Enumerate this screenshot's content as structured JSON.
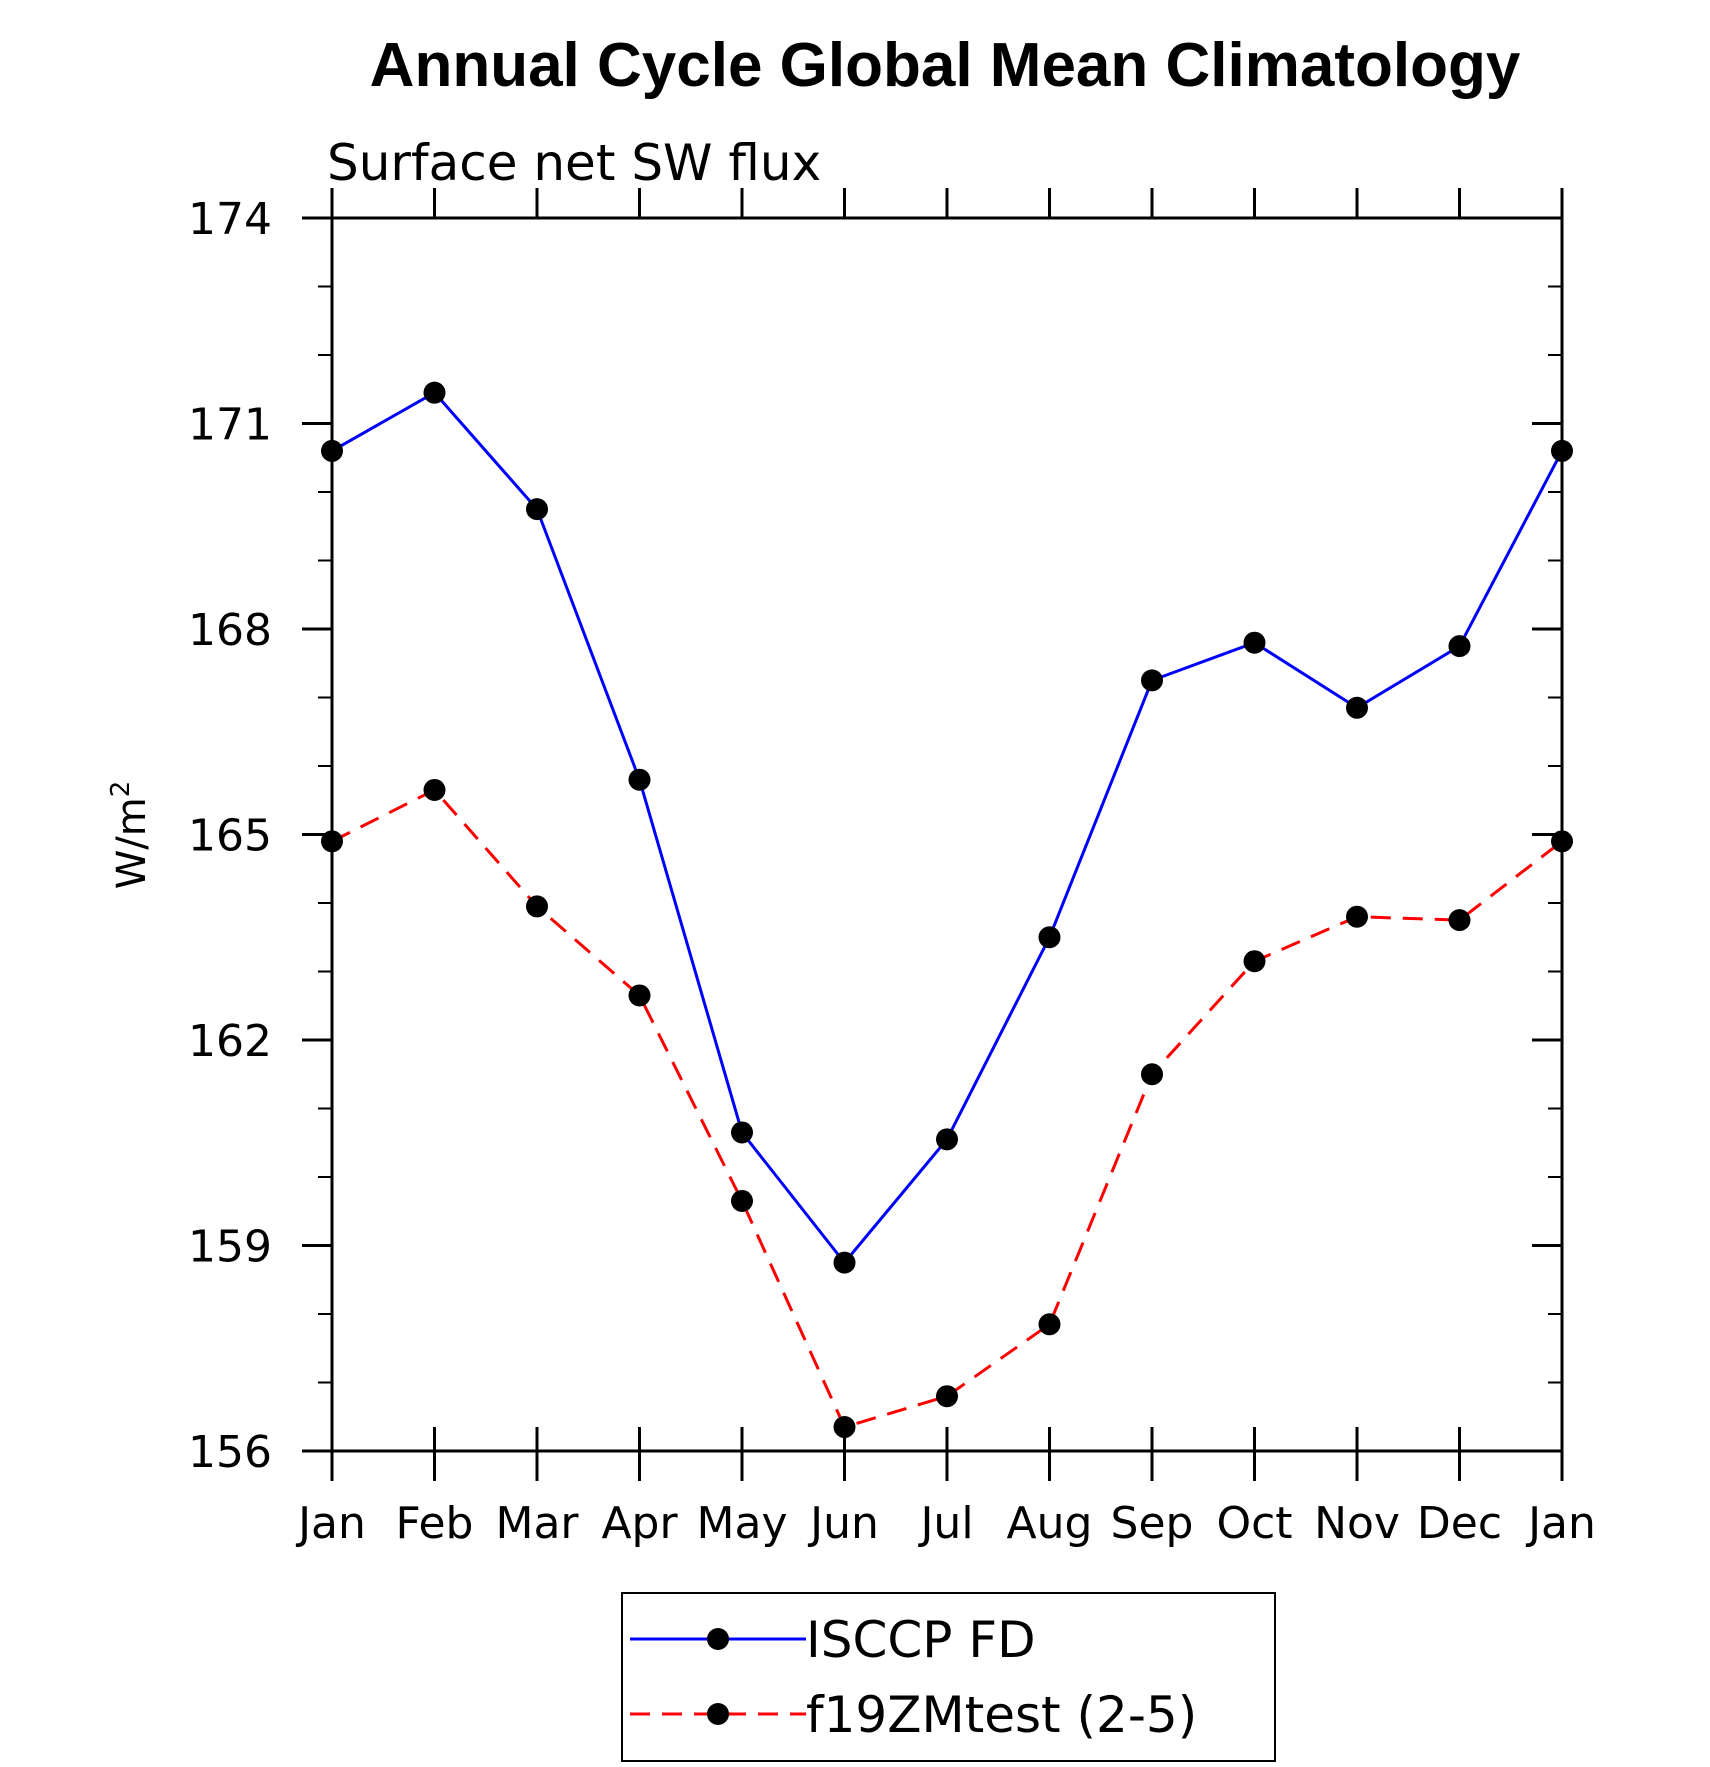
{
  "chart_data": {
    "type": "line",
    "title": "Annual Cycle Global Mean Climatology",
    "subtitle": "Surface net SW flux",
    "ylabel": "W/m",
    "ylabel_superscript": "2",
    "xlabel": "",
    "categories": [
      "Jan",
      "Feb",
      "Mar",
      "Apr",
      "May",
      "Jun",
      "Jul",
      "Aug",
      "Sep",
      "Oct",
      "Nov",
      "Dec",
      "Jan"
    ],
    "ylim": [
      156,
      174
    ],
    "yticks": [
      "156",
      "159",
      "162",
      "165",
      "168",
      "171",
      "174"
    ],
    "grid": false,
    "legend_position": "bottom-center",
    "series": [
      {
        "name": "ISCCP FD",
        "color": "#0000ff",
        "style": "solid",
        "values": [
          170.6,
          171.45,
          169.75,
          165.8,
          160.65,
          158.75,
          160.55,
          163.5,
          167.25,
          167.8,
          166.85,
          167.75,
          170.6
        ]
      },
      {
        "name": "f19ZMtest (2-5)",
        "color": "#ff0000",
        "style": "dashed",
        "values": [
          164.9,
          165.65,
          163.95,
          162.65,
          159.65,
          156.35,
          156.8,
          157.85,
          161.5,
          163.15,
          163.8,
          163.75,
          164.9
        ]
      }
    ]
  }
}
